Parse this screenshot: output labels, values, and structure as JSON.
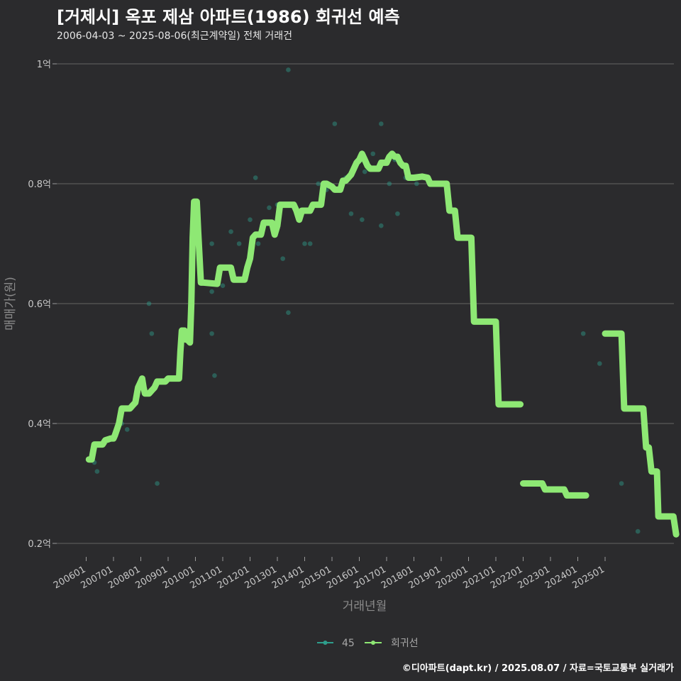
{
  "header": {
    "title": "[거제시] 옥포 제삼 아파트(1986) 회귀선 예측",
    "subtitle": "2006-04-03 ~ 2025-08-06(최근계약일) 전체 거래건"
  },
  "caption": "©디아파트(dapt.kr) / 2025.08.07 / 자료=국토교통부 실거래가",
  "chart_data": {
    "type": "line",
    "xlabel": "거래년월",
    "ylabel": "매매가(원)",
    "x_unit": "years since 2006-01",
    "xlim": [
      -0.3,
      21.7
    ],
    "ylim": [
      0.18,
      1.02
    ],
    "yticks": [
      {
        "value": 0.2,
        "label": "0.2억"
      },
      {
        "value": 0.4,
        "label": "0.4억"
      },
      {
        "value": 0.6,
        "label": "0.6억"
      },
      {
        "value": 0.8,
        "label": "0.8억"
      },
      {
        "value": 1.0,
        "label": "1억"
      }
    ],
    "xticks": [
      "200601",
      "200701",
      "200801",
      "200901",
      "201001",
      "201101",
      "201201",
      "201301",
      "201401",
      "201501",
      "201601",
      "201701",
      "201801",
      "201901",
      "202001",
      "202101",
      "202201",
      "202301",
      "202401",
      "202501"
    ],
    "grid": true,
    "legend_position": "bottom",
    "colors": {
      "scatter": "#2e9e8c",
      "regression": "#8ee874",
      "grid": "#5a5a5a"
    },
    "series": [
      {
        "name": "45",
        "kind": "scatter",
        "points": [
          [
            0.3,
            0.335
          ],
          [
            0.4,
            0.32
          ],
          [
            1.3,
            0.4
          ],
          [
            1.5,
            0.39
          ],
          [
            2.3,
            0.6
          ],
          [
            2.4,
            0.55
          ],
          [
            2.6,
            0.3
          ],
          [
            3.5,
            0.53
          ],
          [
            4.0,
            0.7
          ],
          [
            4.6,
            0.7
          ],
          [
            4.6,
            0.62
          ],
          [
            4.6,
            0.55
          ],
          [
            4.7,
            0.48
          ],
          [
            5.0,
            0.63
          ],
          [
            5.3,
            0.72
          ],
          [
            5.6,
            0.7
          ],
          [
            6.0,
            0.74
          ],
          [
            6.2,
            0.81
          ],
          [
            6.3,
            0.7
          ],
          [
            6.7,
            0.76
          ],
          [
            7.0,
            0.765
          ],
          [
            7.2,
            0.675
          ],
          [
            7.4,
            0.585
          ],
          [
            7.4,
            0.99
          ],
          [
            8.0,
            0.7
          ],
          [
            8.2,
            0.7
          ],
          [
            8.5,
            0.8
          ],
          [
            8.8,
            0.79
          ],
          [
            9.1,
            0.9
          ],
          [
            9.5,
            0.81
          ],
          [
            9.7,
            0.75
          ],
          [
            10.1,
            0.74
          ],
          [
            10.2,
            0.82
          ],
          [
            10.5,
            0.85
          ],
          [
            10.8,
            0.73
          ],
          [
            10.8,
            0.9
          ],
          [
            11.1,
            0.8
          ],
          [
            11.3,
            0.84
          ],
          [
            11.4,
            0.75
          ],
          [
            11.7,
            0.81
          ],
          [
            12.1,
            0.8
          ],
          [
            18.2,
            0.55
          ],
          [
            18.8,
            0.5
          ],
          [
            19.6,
            0.3
          ],
          [
            20.2,
            0.22
          ]
        ]
      },
      {
        "name": "회귀선",
        "kind": "line",
        "segments": [
          [
            [
              0.1,
              0.34
            ],
            [
              0.2,
              0.34
            ],
            [
              0.3,
              0.365
            ],
            [
              0.6,
              0.365
            ],
            [
              0.7,
              0.372
            ],
            [
              0.9,
              0.375
            ],
            [
              1.0,
              0.375
            ],
            [
              1.05,
              0.38
            ],
            [
              1.2,
              0.4
            ],
            [
              1.3,
              0.425
            ],
            [
              1.6,
              0.425
            ],
            [
              1.7,
              0.43
            ],
            [
              1.8,
              0.435
            ],
            [
              1.9,
              0.46
            ],
            [
              2.0,
              0.47
            ],
            [
              2.05,
              0.475
            ],
            [
              2.1,
              0.46
            ],
            [
              2.15,
              0.45
            ],
            [
              2.2,
              0.45
            ],
            [
              2.3,
              0.45
            ],
            [
              2.4,
              0.455
            ],
            [
              2.5,
              0.46
            ],
            [
              2.6,
              0.47
            ],
            [
              2.9,
              0.47
            ],
            [
              3.0,
              0.475
            ],
            [
              3.4,
              0.475
            ],
            [
              3.45,
              0.52
            ],
            [
              3.5,
              0.555
            ],
            [
              3.6,
              0.555
            ],
            [
              3.65,
              0.54
            ],
            [
              3.7,
              0.54
            ],
            [
              3.8,
              0.535
            ],
            [
              3.85,
              0.6
            ],
            [
              3.9,
              0.71
            ],
            [
              3.95,
              0.77
            ],
            [
              4.05,
              0.77
            ],
            [
              4.1,
              0.72
            ],
            [
              4.2,
              0.635
            ],
            [
              4.3,
              0.635
            ],
            [
              4.8,
              0.633
            ],
            [
              4.9,
              0.66
            ],
            [
              5.0,
              0.66
            ],
            [
              5.3,
              0.66
            ],
            [
              5.4,
              0.64
            ],
            [
              5.5,
              0.64
            ],
            [
              5.8,
              0.64
            ],
            [
              5.9,
              0.66
            ],
            [
              6.0,
              0.675
            ],
            [
              6.1,
              0.71
            ],
            [
              6.2,
              0.715
            ],
            [
              6.4,
              0.715
            ],
            [
              6.5,
              0.735
            ],
            [
              6.8,
              0.735
            ],
            [
              6.9,
              0.715
            ],
            [
              7.0,
              0.73
            ],
            [
              7.1,
              0.765
            ],
            [
              7.6,
              0.765
            ],
            [
              7.7,
              0.755
            ],
            [
              7.8,
              0.74
            ],
            [
              7.9,
              0.755
            ],
            [
              8.2,
              0.755
            ],
            [
              8.3,
              0.765
            ],
            [
              8.4,
              0.765
            ],
            [
              8.6,
              0.765
            ],
            [
              8.7,
              0.8
            ],
            [
              8.8,
              0.8
            ],
            [
              9.0,
              0.795
            ],
            [
              9.1,
              0.79
            ],
            [
              9.3,
              0.79
            ],
            [
              9.4,
              0.805
            ],
            [
              9.5,
              0.805
            ],
            [
              9.7,
              0.815
            ],
            [
              9.8,
              0.825
            ],
            [
              9.9,
              0.835
            ],
            [
              10.0,
              0.84
            ],
            [
              10.1,
              0.85
            ],
            [
              10.2,
              0.84
            ],
            [
              10.3,
              0.83
            ],
            [
              10.4,
              0.825
            ],
            [
              10.7,
              0.825
            ],
            [
              10.8,
              0.835
            ],
            [
              11.0,
              0.835
            ],
            [
              11.1,
              0.845
            ],
            [
              11.2,
              0.85
            ],
            [
              11.3,
              0.845
            ],
            [
              11.4,
              0.845
            ],
            [
              11.5,
              0.835
            ],
            [
              11.6,
              0.83
            ],
            [
              11.7,
              0.83
            ],
            [
              11.8,
              0.81
            ],
            [
              12.0,
              0.81
            ],
            [
              12.3,
              0.812
            ],
            [
              12.5,
              0.81
            ],
            [
              12.6,
              0.8
            ],
            [
              13.2,
              0.8
            ],
            [
              13.3,
              0.755
            ],
            [
              13.5,
              0.755
            ],
            [
              13.6,
              0.71
            ],
            [
              14.1,
              0.71
            ],
            [
              14.2,
              0.57
            ],
            [
              15.0,
              0.57
            ],
            [
              15.1,
              0.432
            ],
            [
              15.9,
              0.432
            ]
          ],
          [
            [
              16.0,
              0.3
            ],
            [
              16.7,
              0.3
            ],
            [
              16.8,
              0.29
            ],
            [
              17.5,
              0.29
            ],
            [
              17.6,
              0.28
            ],
            [
              18.3,
              0.28
            ]
          ],
          [
            [
              19.0,
              0.55
            ],
            [
              19.6,
              0.55
            ],
            [
              19.7,
              0.425
            ],
            [
              20.4,
              0.425
            ],
            [
              20.5,
              0.36
            ],
            [
              20.6,
              0.36
            ],
            [
              20.7,
              0.32
            ],
            [
              20.9,
              0.32
            ],
            [
              20.95,
              0.245
            ],
            [
              21.5,
              0.245
            ],
            [
              21.6,
              0.215
            ]
          ]
        ]
      }
    ]
  }
}
